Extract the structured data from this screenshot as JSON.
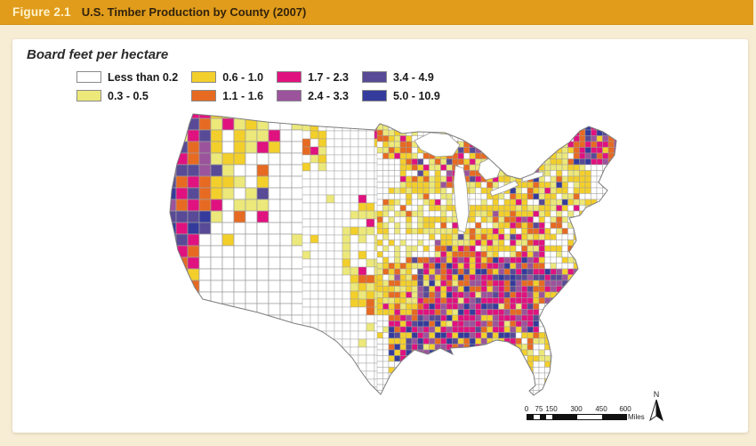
{
  "header": {
    "figure_label": "Figure 2.1",
    "title": "U.S. Timber Production by County (2007)"
  },
  "legend": {
    "title": "Board feet per hectare",
    "items": [
      {
        "label": "Less than 0.2",
        "color": "#FFFFFF"
      },
      {
        "label": "0.3 - 0.5",
        "color": "#ECE87A"
      },
      {
        "label": "0.6 - 1.0",
        "color": "#F3CF2B"
      },
      {
        "label": "1.1 - 1.6",
        "color": "#E76A22"
      },
      {
        "label": "1.7 - 2.3",
        "color": "#E0127F"
      },
      {
        "label": "2.4 - 3.3",
        "color": "#9B539C"
      },
      {
        "label": "3.4 - 4.9",
        "color": "#584A96"
      },
      {
        "label": "5.0 - 10.9",
        "color": "#343B9C"
      }
    ]
  },
  "map": {
    "type": "choropleth",
    "subject": "U.S. timber production by county (2007), board feet per hectare",
    "north_label": "N",
    "scalebar": {
      "ticks": [
        "0",
        "75",
        "150",
        "300",
        "450",
        "600"
      ],
      "units": "Miles"
    },
    "class_colors": [
      "#FFFFFF",
      "#ECE87A",
      "#F3CF2B",
      "#E76A22",
      "#E0127F",
      "#9B539C",
      "#584A96",
      "#343B9C"
    ],
    "default_weights": [
      0.965,
      0.02,
      0.015,
      0,
      0,
      0,
      0,
      0
    ],
    "regions": [
      {
        "name": "maine",
        "rects": [
          [
            648,
            138,
            50,
            45
          ]
        ],
        "weights": [
          0,
          0,
          0.1,
          0.3,
          0.4,
          0.1,
          0.05,
          0.05
        ]
      },
      {
        "name": "pacific-northwest-coast",
        "rects": [
          [
            183,
            124,
            54,
            134
          ]
        ],
        "weights": [
          0,
          0.05,
          0.05,
          0.2,
          0.17,
          0.12,
          0.25,
          0.16
        ]
      },
      {
        "name": "northern-california-coast",
        "rects": [
          [
            184,
            258,
            42,
            92
          ]
        ],
        "weights": [
          0.05,
          0.1,
          0.1,
          0.3,
          0.25,
          0.08,
          0.07,
          0.05
        ]
      },
      {
        "name": "cascades-inland-nw",
        "rects": [
          [
            237,
            124,
            70,
            128
          ]
        ],
        "weights": [
          0.2,
          0.35,
          0.25,
          0.1,
          0.07,
          0,
          0.03,
          0
        ]
      },
      {
        "name": "northern-rockies",
        "rects": [
          [
            307,
            124,
            58,
            70
          ]
        ],
        "weights": [
          0.45,
          0.15,
          0.25,
          0.07,
          0.08,
          0,
          0,
          0
        ]
      },
      {
        "name": "northern-minnesota",
        "rects": [
          [
            420,
            136,
            52,
            42
          ]
        ],
        "weights": [
          0.15,
          0.2,
          0.25,
          0.32,
          0.05,
          0.03,
          0,
          0
        ]
      },
      {
        "name": "upper-great-lakes",
        "rects": [
          [
            452,
            158,
            100,
            50
          ]
        ],
        "weights": [
          0.1,
          0.15,
          0.25,
          0.3,
          0.12,
          0.03,
          0.05,
          0
        ]
      },
      {
        "name": "lower-michigan-wisconsin",
        "rects": [
          [
            452,
            208,
            103,
            55
          ]
        ],
        "weights": [
          0.3,
          0.3,
          0.3,
          0.07,
          0.03,
          0,
          0,
          0
        ]
      },
      {
        "name": "mid-atlantic-coast",
        "rects": [
          [
            612,
            246,
            56,
            57
          ]
        ],
        "weights": [
          0.5,
          0.25,
          0.2,
          0.05,
          0,
          0,
          0,
          0
        ]
      },
      {
        "name": "north-florida",
        "rects": [
          [
            580,
            376,
            40,
            28
          ]
        ],
        "weights": [
          0.25,
          0.3,
          0.35,
          0.1,
          0,
          0,
          0,
          0
        ]
      },
      {
        "name": "florida-peninsula",
        "rects": [
          [
            577,
            400,
            46,
            48
          ]
        ],
        "weights": [
          0.72,
          0.14,
          0.12,
          0.02,
          0,
          0,
          0,
          0
        ]
      },
      {
        "name": "appalachia-ohio-valley",
        "rects": [
          [
            486,
            236,
            114,
            56
          ]
        ],
        "weights": [
          0.1,
          0.2,
          0.35,
          0.15,
          0.12,
          0.05,
          0.03,
          0
        ]
      },
      {
        "name": "ozarks",
        "rects": [
          [
            393,
            298,
            78,
            58
          ]
        ],
        "weights": [
          0.1,
          0.25,
          0.35,
          0.2,
          0.07,
          0.03,
          0,
          0
        ]
      },
      {
        "name": "carolinas-virginia",
        "rects": [
          [
            558,
            250,
            104,
            94
          ]
        ],
        "weights": [
          0,
          0.05,
          0.12,
          0.15,
          0.3,
          0.2,
          0.1,
          0.08
        ]
      },
      {
        "name": "east-texas-louisiana",
        "rects": [
          [
            434,
            306,
            64,
            98
          ]
        ],
        "weights": [
          0,
          0.05,
          0.1,
          0.15,
          0.2,
          0.2,
          0.15,
          0.15
        ]
      },
      {
        "name": "deep-south",
        "rects": [
          [
            466,
            286,
            137,
            112
          ]
        ],
        "weights": [
          0,
          0.05,
          0.1,
          0.15,
          0.3,
          0.2,
          0.1,
          0.1
        ]
      },
      {
        "name": "corn-belt",
        "rects": [
          [
            383,
            223,
            117,
            87
          ]
        ],
        "weights": [
          0.55,
          0.25,
          0.15,
          0.04,
          0.01,
          0,
          0,
          0
        ]
      },
      {
        "name": "northeast",
        "rects": [
          [
            538,
            158,
            127,
            102
          ]
        ],
        "weights": [
          0.15,
          0.3,
          0.38,
          0.07,
          0.04,
          0.02,
          0.02,
          0.02
        ]
      }
    ]
  },
  "colors": {
    "header_bg": "#E19C1C",
    "header_label": "#FDF3CD",
    "header_title": "#33230B",
    "page_bg": "#F7EDD5",
    "panel_bg": "#FFFFFF",
    "county_line": "#9E9E9E",
    "coast_outline": "#7D7D7D"
  }
}
